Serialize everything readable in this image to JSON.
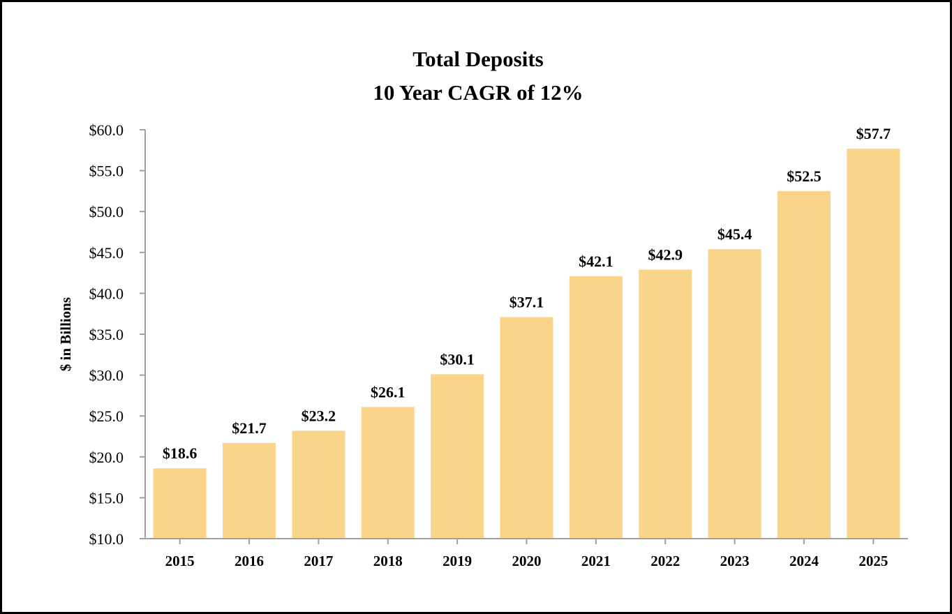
{
  "chart_data": {
    "type": "bar",
    "title": "Total Deposits",
    "subtitle": "10 Year CAGR of 12%",
    "xlabel": "",
    "ylabel": "$ in Billions",
    "categories": [
      "2015",
      "2016",
      "2017",
      "2018",
      "2019",
      "2020",
      "2021",
      "2022",
      "2023",
      "2024",
      "2025"
    ],
    "values": [
      18.6,
      21.7,
      23.2,
      26.1,
      30.1,
      37.1,
      42.1,
      42.9,
      45.4,
      52.5,
      57.7
    ],
    "data_labels": [
      "$18.6",
      "$21.7",
      "$23.2",
      "$26.1",
      "$30.1",
      "$37.1",
      "$42.1",
      "$42.9",
      "$45.4",
      "$52.5",
      "$57.7"
    ],
    "ylim": [
      10,
      60
    ],
    "yticks": [
      10,
      15,
      20,
      25,
      30,
      35,
      40,
      45,
      50,
      55,
      60
    ],
    "ytick_labels": [
      "$10.0",
      "$15.0",
      "$20.0",
      "$25.0",
      "$30.0",
      "$35.0",
      "$40.0",
      "$45.0",
      "$50.0",
      "$55.0",
      "$60.0"
    ],
    "grid": false,
    "legend": "none",
    "colors": {
      "bar": "#FBD48B",
      "axis": "#A0A0A0",
      "text": "#000000"
    }
  }
}
